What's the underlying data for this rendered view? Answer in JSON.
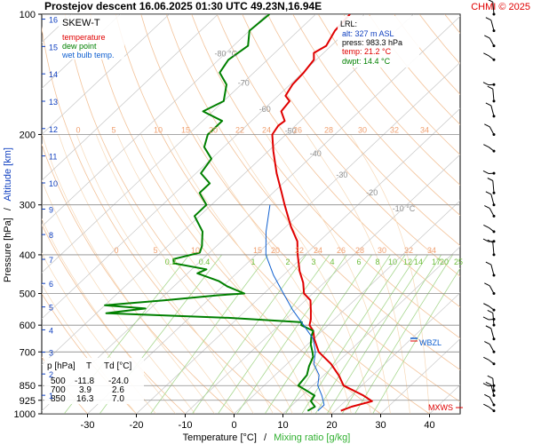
{
  "header": {
    "title": "Prostejov   descent   16.06.2025 01:30 UTC   49.23N,16.94E",
    "copyright": "CHMI © 2025"
  },
  "legend": {
    "title": "SKEW-T",
    "items": [
      {
        "label": "temperature",
        "color": "#e00000"
      },
      {
        "label": "dew point",
        "color": "#008000"
      },
      {
        "label": "wet bulb temp.",
        "color": "#1060d0"
      }
    ]
  },
  "lrl_box": {
    "title": "LRL:",
    "lines": [
      {
        "text": "alt: 327 m ASL",
        "color": "#1040c0"
      },
      {
        "text": "press: 983.3 hPa",
        "color": "#000000"
      },
      {
        "text": "temp: 21.2 °C",
        "color": "#e00000"
      },
      {
        "text": "dwpt: 14.4 °C",
        "color": "#008000"
      }
    ]
  },
  "table": {
    "headers": [
      "p [hPa]",
      "T",
      "Td [°C]"
    ],
    "rows": [
      [
        "500",
        "-11.8",
        "-24.0"
      ],
      [
        "700",
        "3.9",
        "2.6"
      ],
      [
        "850",
        "16.3",
        "7.0"
      ]
    ]
  },
  "axes": {
    "xlabel_temp": "Temperature [°C]",
    "xlabel_sep": "/",
    "xlabel_mix": "Mixing ratio [g/kg]",
    "ylabel_pressure": "Pressure [hPa]",
    "ylabel_sep": "/",
    "ylabel_alt": "Altitude [km]"
  },
  "markers": {
    "wbzl": "WBZL",
    "mxws": "MXWS"
  },
  "chart_data": {
    "type": "line",
    "y_scale": "log",
    "x_ticks": [
      "-30",
      "-20",
      "-10",
      "0",
      "10",
      "20",
      "30",
      "40"
    ],
    "xlim": [
      -35,
      50
    ],
    "p_ticks": [
      "100",
      "200",
      "300",
      "400",
      "500",
      "600",
      "700",
      "850",
      "925",
      "1000"
    ],
    "p_values": [
      100,
      200,
      300,
      400,
      500,
      600,
      700,
      850,
      925,
      1000
    ],
    "ylim": [
      1000,
      100
    ],
    "altitude_ticks": [
      "16",
      "15",
      "14",
      "13",
      "12",
      "11",
      "10",
      "9",
      "8",
      "7",
      "6",
      "5",
      "4",
      "3",
      "2",
      "1"
    ],
    "altitude_values": [
      16,
      15,
      14,
      13,
      12,
      11,
      10,
      9,
      8,
      7,
      6,
      5,
      4,
      3,
      2,
      1
    ],
    "isotherm_labels": [
      "-80 °C",
      "-70",
      "-60",
      "-50",
      "-40",
      "-30",
      "-20",
      "-10 °C"
    ],
    "isotherm_values": [
      -80,
      -70,
      -60,
      -50,
      -40,
      -30,
      -20,
      -10
    ],
    "mixing_ratio_labels": [
      "0.2",
      "0.4",
      "1",
      "2",
      "3",
      "4",
      "6",
      "8",
      "10",
      "12",
      "14",
      "17",
      "20",
      "25"
    ],
    "mixing_ratio_values": [
      0.2,
      0.4,
      1,
      2,
      3,
      4,
      6,
      8,
      10,
      12,
      14,
      17,
      20,
      25
    ],
    "theta_labels_200": [
      "0",
      "5",
      "10",
      "15",
      "20",
      "22",
      "24",
      "26",
      "28",
      "30",
      "32",
      "34"
    ],
    "theta_labels_400": [
      "0",
      "5",
      "10",
      "15",
      "20",
      "22",
      "24",
      "26",
      "28",
      "30",
      "32",
      "34"
    ],
    "series": [
      {
        "name": "temperature",
        "color": "#e00000",
        "points": [
          [
            983,
            21.2
          ],
          [
            960,
            22.5
          ],
          [
            930,
            25.5
          ],
          [
            900,
            22.5
          ],
          [
            850,
            16.3
          ],
          [
            800,
            13.0
          ],
          [
            750,
            9.0
          ],
          [
            700,
            3.9
          ],
          [
            650,
            0.2
          ],
          [
            620,
            -1.8
          ],
          [
            600,
            -3.8
          ],
          [
            580,
            -4.8
          ],
          [
            550,
            -6.8
          ],
          [
            520,
            -9.0
          ],
          [
            500,
            -11.8
          ],
          [
            470,
            -14.3
          ],
          [
            440,
            -17.5
          ],
          [
            400,
            -21.5
          ],
          [
            370,
            -24.5
          ],
          [
            340,
            -29.0
          ],
          [
            300,
            -35.0
          ],
          [
            280,
            -38.2
          ],
          [
            250,
            -43.5
          ],
          [
            220,
            -49.0
          ],
          [
            200,
            -52.8
          ],
          [
            190,
            -53.5
          ],
          [
            185,
            -53.2
          ],
          [
            175,
            -56.0
          ],
          [
            165,
            -56.5
          ],
          [
            160,
            -58.5
          ],
          [
            150,
            -59.5
          ],
          [
            140,
            -59.8
          ],
          [
            130,
            -60.5
          ],
          [
            125,
            -62.0
          ],
          [
            120,
            -61.0
          ],
          [
            110,
            -62.5
          ],
          [
            100,
            -63.0
          ]
        ]
      },
      {
        "name": "dew point",
        "color": "#008000",
        "points": [
          [
            983,
            14.4
          ],
          [
            960,
            15.0
          ],
          [
            930,
            13.0
          ],
          [
            900,
            12.5
          ],
          [
            850,
            7.0
          ],
          [
            800,
            6.5
          ],
          [
            760,
            5.0
          ],
          [
            720,
            3.8
          ],
          [
            700,
            2.6
          ],
          [
            670,
            0.6
          ],
          [
            640,
            -1.0
          ],
          [
            620,
            -1.8
          ],
          [
            600,
            -5.5
          ],
          [
            590,
            -6.0
          ],
          [
            575,
            -22.0
          ],
          [
            560,
            -48.0
          ],
          [
            545,
            -41.0
          ],
          [
            535,
            -50.0
          ],
          [
            520,
            -39.0
          ],
          [
            505,
            -29.0
          ],
          [
            500,
            -24.0
          ],
          [
            480,
            -29.0
          ],
          [
            465,
            -32.0
          ],
          [
            445,
            -38.0
          ],
          [
            435,
            -37.0
          ],
          [
            420,
            -45.0
          ],
          [
            410,
            -46.0
          ],
          [
            395,
            -42.0
          ],
          [
            380,
            -43.0
          ],
          [
            370,
            -44.0
          ],
          [
            350,
            -46.0
          ],
          [
            320,
            -51.0
          ],
          [
            300,
            -51.0
          ],
          [
            280,
            -55.0
          ],
          [
            265,
            -55.0
          ],
          [
            250,
            -59.0
          ],
          [
            230,
            -60.0
          ],
          [
            215,
            -64.0
          ],
          [
            200,
            -66.0
          ],
          [
            185,
            -66.0
          ],
          [
            175,
            -72.0
          ],
          [
            165,
            -70.0
          ],
          [
            150,
            -73.0
          ],
          [
            140,
            -77.0
          ],
          [
            130,
            -78.0
          ],
          [
            120,
            -77.0
          ],
          [
            110,
            -80.0
          ],
          [
            100,
            -79.5
          ]
        ]
      },
      {
        "name": "wet bulb temp.",
        "color": "#1060d0",
        "points": [
          [
            983,
            16.5
          ],
          [
            950,
            16.5
          ],
          [
            900,
            14.0
          ],
          [
            850,
            11.0
          ],
          [
            800,
            9.0
          ],
          [
            750,
            5.5
          ],
          [
            700,
            3.2
          ],
          [
            650,
            0.0
          ],
          [
            600,
            -5.0
          ],
          [
            550,
            -10.5
          ],
          [
            500,
            -16.0
          ],
          [
            450,
            -22.0
          ],
          [
            400,
            -28.0
          ],
          [
            350,
            -33.0
          ],
          [
            300,
            -38.0
          ]
        ]
      }
    ],
    "wind_barbs_hpa": [
      100,
      110,
      120,
      130,
      150,
      165,
      180,
      200,
      220,
      250,
      280,
      300,
      320,
      350,
      370,
      400,
      450,
      500,
      550,
      580,
      600,
      650,
      700,
      750,
      850,
      875,
      900,
      950,
      983
    ]
  }
}
